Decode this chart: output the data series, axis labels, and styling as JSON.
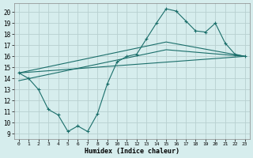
{
  "xlabel": "Humidex (Indice chaleur)",
  "xlim": [
    -0.5,
    23.5
  ],
  "ylim": [
    8.5,
    20.8
  ],
  "yticks": [
    9,
    10,
    11,
    12,
    13,
    14,
    15,
    16,
    17,
    18,
    19,
    20
  ],
  "xticks": [
    0,
    1,
    2,
    3,
    4,
    5,
    6,
    7,
    8,
    9,
    10,
    11,
    12,
    13,
    14,
    15,
    16,
    17,
    18,
    19,
    20,
    21,
    22,
    23
  ],
  "bg_color": "#d6eded",
  "grid_color": "#b8d0d0",
  "line_color": "#1a6e6a",
  "line1_x": [
    0,
    1,
    2,
    3,
    4,
    5,
    6,
    7,
    8,
    9,
    10,
    11,
    12,
    13,
    14,
    15,
    16,
    17,
    18,
    19,
    20,
    21,
    22,
    23
  ],
  "line1_y": [
    14.5,
    14.0,
    13.0,
    11.2,
    10.7,
    9.2,
    9.7,
    9.2,
    10.8,
    13.5,
    15.5,
    16.0,
    16.2,
    17.6,
    19.0,
    20.3,
    20.1,
    19.2,
    18.3,
    18.2,
    19.0,
    17.2,
    16.2,
    16.0
  ],
  "line2_x": [
    0,
    23
  ],
  "line2_y": [
    14.5,
    16.0
  ],
  "line3_x": [
    0,
    15,
    23
  ],
  "line3_y": [
    13.8,
    16.6,
    16.0
  ],
  "line4_x": [
    0,
    15,
    23
  ],
  "line4_y": [
    14.5,
    17.3,
    16.0
  ]
}
